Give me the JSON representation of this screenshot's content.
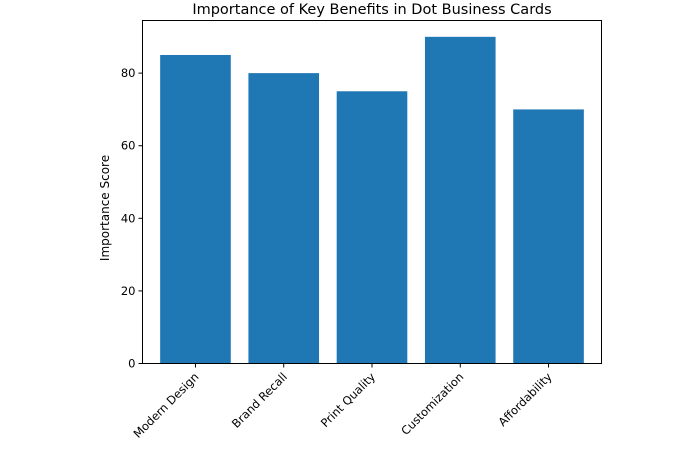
{
  "chart_data": {
    "type": "bar",
    "title": "Importance of Key Benefits in Dot Business Cards",
    "xlabel": "",
    "ylabel": "Importance Score",
    "categories": [
      "Modern Design",
      "Brand Recall",
      "Print Quality",
      "Customization",
      "Affordability"
    ],
    "values": [
      85,
      80,
      75,
      90,
      70
    ],
    "yticks": [
      0,
      20,
      40,
      60,
      80
    ],
    "ylim": [
      0,
      94.5
    ],
    "bar_color": "#1f77b4",
    "grid": false,
    "legend": "none",
    "xtick_rotation": -45
  }
}
